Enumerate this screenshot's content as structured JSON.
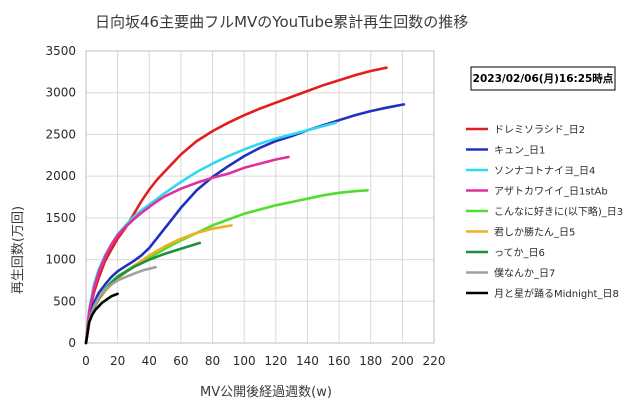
{
  "chart_data": {
    "type": "line",
    "title": "日向坂46主要曲フルMVのYouTube累計再生回数の推移",
    "timestamp": "2023/02/06(月)16:25時点",
    "xlabel": "MV公開後経過週数(w)",
    "ylabel": "再生回数(万回)",
    "xlim": [
      0,
      220
    ],
    "ylim": [
      0,
      3500
    ],
    "xticks": [
      0,
      20,
      40,
      60,
      80,
      100,
      120,
      140,
      160,
      180,
      200,
      220
    ],
    "yticks": [
      0,
      500,
      1000,
      1500,
      2000,
      2500,
      3000,
      3500
    ],
    "grid": true,
    "legend_position": "right",
    "series": [
      {
        "name": "ドレミソラシド_日2",
        "color": "#e02020",
        "points": [
          [
            0,
            0
          ],
          [
            2,
            350
          ],
          [
            5,
            600
          ],
          [
            8,
            780
          ],
          [
            12,
            980
          ],
          [
            16,
            1120
          ],
          [
            20,
            1250
          ],
          [
            25,
            1380
          ],
          [
            30,
            1540
          ],
          [
            35,
            1700
          ],
          [
            40,
            1840
          ],
          [
            45,
            1960
          ],
          [
            50,
            2060
          ],
          [
            55,
            2160
          ],
          [
            60,
            2260
          ],
          [
            65,
            2340
          ],
          [
            70,
            2420
          ],
          [
            80,
            2540
          ],
          [
            90,
            2640
          ],
          [
            100,
            2730
          ],
          [
            110,
            2810
          ],
          [
            120,
            2880
          ],
          [
            130,
            2950
          ],
          [
            140,
            3020
          ],
          [
            150,
            3090
          ],
          [
            160,
            3150
          ],
          [
            170,
            3210
          ],
          [
            180,
            3260
          ],
          [
            190,
            3300
          ]
        ]
      },
      {
        "name": "キュン_日1",
        "color": "#2030c0",
        "points": [
          [
            0,
            0
          ],
          [
            2,
            300
          ],
          [
            5,
            480
          ],
          [
            8,
            600
          ],
          [
            12,
            700
          ],
          [
            16,
            790
          ],
          [
            20,
            860
          ],
          [
            25,
            920
          ],
          [
            30,
            980
          ],
          [
            35,
            1050
          ],
          [
            40,
            1140
          ],
          [
            45,
            1260
          ],
          [
            50,
            1380
          ],
          [
            55,
            1500
          ],
          [
            60,
            1620
          ],
          [
            70,
            1830
          ],
          [
            80,
            1990
          ],
          [
            90,
            2120
          ],
          [
            100,
            2240
          ],
          [
            110,
            2340
          ],
          [
            120,
            2420
          ],
          [
            130,
            2480
          ],
          [
            140,
            2550
          ],
          [
            150,
            2610
          ],
          [
            160,
            2670
          ],
          [
            170,
            2730
          ],
          [
            180,
            2780
          ],
          [
            190,
            2820
          ],
          [
            201,
            2860
          ]
        ]
      },
      {
        "name": "ソンナコトナイヨ_日4",
        "color": "#30d8f0",
        "points": [
          [
            0,
            0
          ],
          [
            2,
            400
          ],
          [
            5,
            700
          ],
          [
            8,
            880
          ],
          [
            12,
            1050
          ],
          [
            16,
            1180
          ],
          [
            20,
            1300
          ],
          [
            25,
            1410
          ],
          [
            30,
            1510
          ],
          [
            35,
            1590
          ],
          [
            40,
            1660
          ],
          [
            45,
            1730
          ],
          [
            50,
            1800
          ],
          [
            60,
            1930
          ],
          [
            70,
            2050
          ],
          [
            80,
            2150
          ],
          [
            90,
            2240
          ],
          [
            100,
            2320
          ],
          [
            110,
            2390
          ],
          [
            120,
            2450
          ],
          [
            130,
            2500
          ],
          [
            140,
            2550
          ],
          [
            150,
            2600
          ],
          [
            158,
            2640
          ]
        ]
      },
      {
        "name": "アザトカワイイ_日1stAb",
        "color": "#e030a0",
        "points": [
          [
            0,
            0
          ],
          [
            2,
            380
          ],
          [
            5,
            650
          ],
          [
            8,
            850
          ],
          [
            12,
            1030
          ],
          [
            16,
            1180
          ],
          [
            20,
            1290
          ],
          [
            25,
            1390
          ],
          [
            30,
            1480
          ],
          [
            35,
            1560
          ],
          [
            40,
            1630
          ],
          [
            45,
            1700
          ],
          [
            50,
            1760
          ],
          [
            60,
            1850
          ],
          [
            70,
            1920
          ],
          [
            80,
            1980
          ],
          [
            90,
            2030
          ],
          [
            100,
            2100
          ],
          [
            110,
            2150
          ],
          [
            120,
            2200
          ],
          [
            128,
            2230
          ]
        ]
      },
      {
        "name": "こんなに好きに(以下略)_日3",
        "color": "#50dd30",
        "points": [
          [
            0,
            0
          ],
          [
            2,
            260
          ],
          [
            5,
            430
          ],
          [
            8,
            540
          ],
          [
            12,
            650
          ],
          [
            16,
            730
          ],
          [
            20,
            800
          ],
          [
            25,
            860
          ],
          [
            30,
            920
          ],
          [
            40,
            1020
          ],
          [
            50,
            1130
          ],
          [
            60,
            1230
          ],
          [
            70,
            1320
          ],
          [
            80,
            1410
          ],
          [
            90,
            1480
          ],
          [
            100,
            1550
          ],
          [
            110,
            1600
          ],
          [
            120,
            1650
          ],
          [
            130,
            1690
          ],
          [
            140,
            1730
          ],
          [
            150,
            1770
          ],
          [
            160,
            1800
          ],
          [
            170,
            1820
          ],
          [
            178,
            1830
          ]
        ]
      },
      {
        "name": "君しか勝たん_日5",
        "color": "#f0b020",
        "points": [
          [
            0,
            0
          ],
          [
            2,
            260
          ],
          [
            5,
            420
          ],
          [
            8,
            520
          ],
          [
            12,
            620
          ],
          [
            16,
            700
          ],
          [
            20,
            770
          ],
          [
            25,
            850
          ],
          [
            30,
            920
          ],
          [
            40,
            1050
          ],
          [
            50,
            1160
          ],
          [
            60,
            1250
          ],
          [
            70,
            1320
          ],
          [
            80,
            1370
          ],
          [
            92,
            1410
          ]
        ]
      },
      {
        "name": "ってか_日6",
        "color": "#209040",
        "points": [
          [
            0,
            0
          ],
          [
            2,
            260
          ],
          [
            5,
            420
          ],
          [
            8,
            530
          ],
          [
            12,
            640
          ],
          [
            16,
            720
          ],
          [
            20,
            790
          ],
          [
            25,
            850
          ],
          [
            30,
            910
          ],
          [
            40,
            1000
          ],
          [
            50,
            1070
          ],
          [
            60,
            1130
          ],
          [
            72,
            1200
          ]
        ]
      },
      {
        "name": "僕なんか_日7",
        "color": "#a0a0a0",
        "points": [
          [
            0,
            0
          ],
          [
            2,
            260
          ],
          [
            5,
            430
          ],
          [
            8,
            540
          ],
          [
            12,
            640
          ],
          [
            16,
            700
          ],
          [
            20,
            750
          ],
          [
            25,
            790
          ],
          [
            30,
            830
          ],
          [
            36,
            870
          ],
          [
            44,
            910
          ]
        ]
      },
      {
        "name": "月と星が踊るMidnight_日8",
        "color": "#000000",
        "points": [
          [
            0,
            0
          ],
          [
            2,
            250
          ],
          [
            4,
            340
          ],
          [
            6,
            400
          ],
          [
            8,
            440
          ],
          [
            10,
            480
          ],
          [
            13,
            520
          ],
          [
            16,
            560
          ],
          [
            20,
            590
          ]
        ]
      }
    ]
  }
}
